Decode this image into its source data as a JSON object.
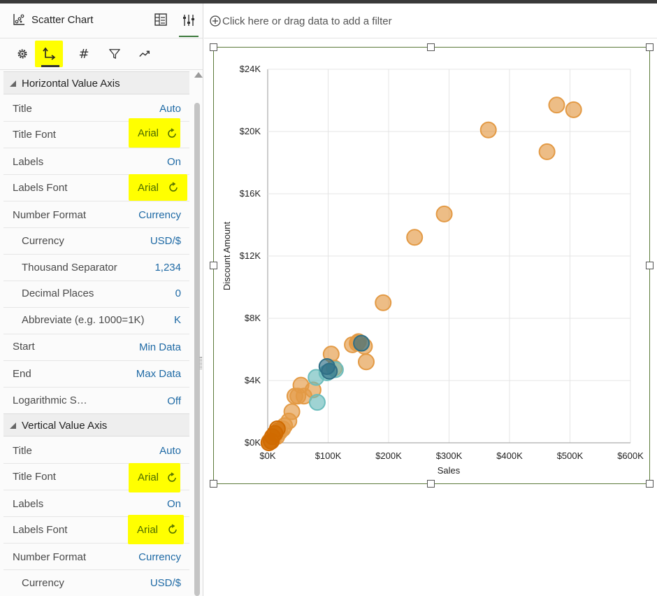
{
  "panel": {
    "title": "Scatter Chart",
    "horizontal_section": "Horizontal Value Axis",
    "vertical_section": "Vertical Value Axis",
    "horizontal_rows": [
      {
        "label": "Title",
        "value": "Auto"
      },
      {
        "label": "Title Font",
        "value": "Arial"
      },
      {
        "label": "Labels",
        "value": "On"
      },
      {
        "label": "Labels Font",
        "value": "Arial"
      },
      {
        "label": "Number Format",
        "value": "Currency"
      },
      {
        "label": "Currency",
        "value": "USD/$"
      },
      {
        "label": "Thousand Separator",
        "value": "1,234"
      },
      {
        "label": "Decimal Places",
        "value": "0"
      },
      {
        "label": "Abbreviate (e.g. 1000=1K)",
        "value": "K"
      },
      {
        "label": "Start",
        "value": "Min Data"
      },
      {
        "label": "End",
        "value": "Max Data"
      },
      {
        "label": "Logarithmic S…",
        "value": "Off"
      }
    ],
    "vertical_rows": [
      {
        "label": "Title",
        "value": "Auto"
      },
      {
        "label": "Title Font",
        "value": "Arial"
      },
      {
        "label": "Labels",
        "value": "On"
      },
      {
        "label": "Labels Font",
        "value": "Arial"
      },
      {
        "label": "Number Format",
        "value": "Currency"
      },
      {
        "label": "Currency",
        "value": "USD/$"
      }
    ]
  },
  "toolbar": {
    "hash_glyph": "#",
    "icons": [
      "gear-icon",
      "axis-icon",
      "hash-icon",
      "filter-icon",
      "trend-icon"
    ]
  },
  "filterbar": {
    "placeholder": "Click here or drag data to add a filter"
  },
  "colors": {
    "highlight": "#ffff00",
    "accent_value": "#1f6aa5",
    "point_orange": "#e39a45",
    "point_teal": "#6bbcbc",
    "point_darkteal": "#2f6f86"
  },
  "chart_data": {
    "type": "scatter",
    "xlabel": "Sales",
    "ylabel": "Discount Amount",
    "xlim": [
      0,
      600000
    ],
    "ylim": [
      0,
      24000
    ],
    "x_ticks": [
      "$0K",
      "$100K",
      "$200K",
      "$300K",
      "$400K",
      "$500K",
      "$600K"
    ],
    "y_ticks": [
      "$0K",
      "$4K",
      "$8K",
      "$12K",
      "$16K",
      "$20K",
      "$24K"
    ],
    "grid": true,
    "series": [
      {
        "color": "#e39a45",
        "points": [
          [
            478000,
            21700
          ],
          [
            506000,
            21400
          ],
          [
            365000,
            20100
          ],
          [
            462000,
            18700
          ],
          [
            292000,
            14700
          ],
          [
            243000,
            13200
          ],
          [
            191000,
            9000
          ],
          [
            105000,
            5700
          ],
          [
            110000,
            4800
          ],
          [
            140000,
            6300
          ],
          [
            148000,
            6400
          ],
          [
            160000,
            6200
          ],
          [
            163000,
            5200
          ],
          [
            150000,
            6500
          ],
          [
            55000,
            3700
          ],
          [
            50000,
            3000
          ],
          [
            60000,
            3000
          ],
          [
            75000,
            3400
          ],
          [
            45000,
            3000
          ],
          [
            40000,
            2000
          ],
          [
            35000,
            1400
          ],
          [
            25000,
            900
          ],
          [
            20000,
            700
          ],
          [
            15000,
            400
          ],
          [
            10000,
            300
          ],
          [
            5000,
            200
          ],
          [
            3000,
            100
          ],
          [
            18000,
            800
          ],
          [
            28000,
            1100
          ]
        ]
      },
      {
        "color": "#6bbcbc",
        "points": [
          [
            82000,
            2600
          ],
          [
            80000,
            4200
          ],
          [
            98000,
            4500
          ],
          [
            112000,
            4700
          ]
        ]
      },
      {
        "color": "#2f6f86",
        "points": [
          [
            98000,
            4900
          ],
          [
            102000,
            4600
          ],
          [
            155000,
            6400
          ]
        ]
      },
      {
        "color": "#d06a00",
        "points": [
          [
            2000,
            0
          ],
          [
            6000,
            100
          ],
          [
            12000,
            600
          ],
          [
            16000,
            900
          ],
          [
            8000,
            400
          ]
        ]
      }
    ]
  }
}
